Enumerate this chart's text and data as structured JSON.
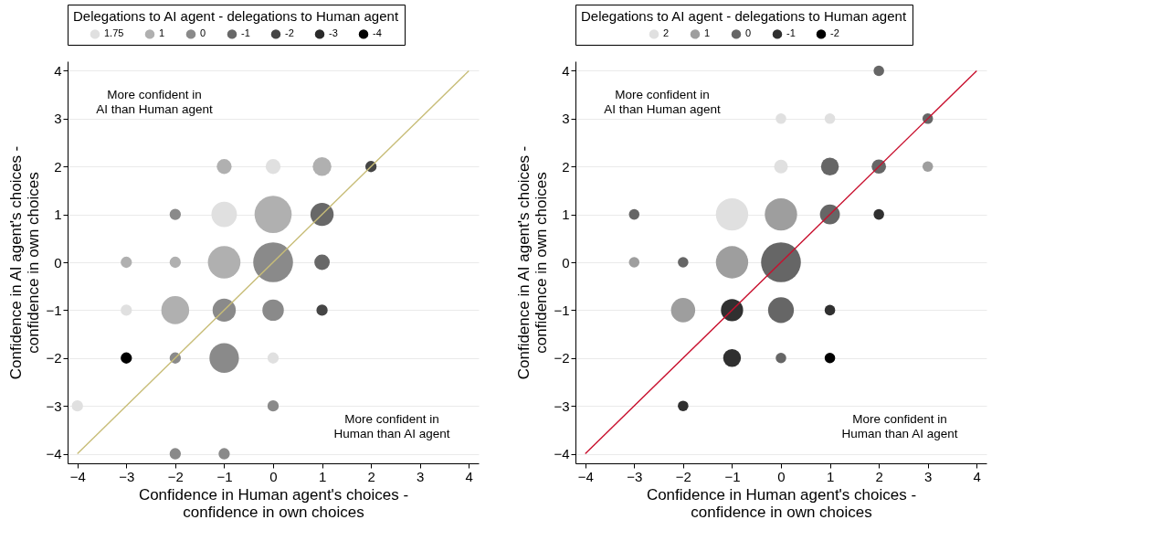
{
  "chart_data": [
    {
      "type": "bubble",
      "xlabel": "Confidence in Human agent's choices -\nconfidence in own choices",
      "ylabel": "Confidence in AI agent's choices -\nconfidence in own choices",
      "legend_title": "Delegations to AI agent - delegations to Human agent",
      "legend": "top",
      "grid": "y",
      "xlim": [
        -4.2,
        4.2
      ],
      "ylim": [
        -4.2,
        4.2
      ],
      "xticks": [
        -4,
        -3,
        -2,
        -1,
        0,
        1,
        2,
        3,
        4
      ],
      "yticks": [
        -4,
        -3,
        -2,
        -1,
        0,
        1,
        2,
        3,
        4
      ],
      "annotations": [
        "More confident in\nAI than Human agent",
        "More confident in\nHuman than AI agent"
      ],
      "series": [
        {
          "name": "1.75",
          "color": "#e0e0e0",
          "x": [
            0,
            -1,
            -3,
            0,
            -4
          ],
          "values": [
            2,
            1,
            -1,
            -2,
            -3
          ],
          "sizes": [
            0.14,
            0.41,
            0.08,
            0.08,
            0.08
          ]
        },
        {
          "name": "1",
          "color": "#b0b0b0",
          "x": [
            -1,
            1,
            0,
            -3,
            -2,
            -1,
            -2
          ],
          "values": [
            2,
            2,
            1,
            0,
            0,
            0,
            -1
          ],
          "sizes": [
            0.14,
            0.22,
            0.87,
            0.08,
            0.08,
            0.67,
            0.49
          ]
        },
        {
          "name": "0",
          "color": "#8a8a8a",
          "x": [
            -2,
            0,
            -1,
            0,
            -2,
            -1,
            0,
            -2,
            -1
          ],
          "values": [
            1,
            0,
            -1,
            -1,
            -2,
            -2,
            -3,
            -4,
            -4
          ],
          "sizes": [
            0.08,
            1,
            0.34,
            0.29,
            0.08,
            0.55,
            0.08,
            0.08,
            0.08
          ]
        },
        {
          "name": "-1",
          "color": "#686868",
          "x": [
            1,
            1
          ],
          "values": [
            1,
            0
          ],
          "sizes": [
            0.34,
            0.15
          ]
        },
        {
          "name": "-2",
          "color": "#454545",
          "x": [
            2,
            1
          ],
          "values": [
            2,
            -1
          ],
          "sizes": [
            0.08,
            0.08
          ]
        },
        {
          "name": "-3",
          "color": "#2a2a2a"
        },
        {
          "name": "-4",
          "color": "#000000",
          "x": [
            -3
          ],
          "values": [
            -2
          ],
          "sizes": [
            0.08
          ]
        },
        {
          "type": "line",
          "color": "#c8bd78",
          "x": [
            -4,
            4
          ],
          "values": [
            -4,
            4
          ]
        }
      ]
    },
    {
      "type": "bubble",
      "xlabel": "Confidence in Human agent's choices -\nconfidence in own choices",
      "ylabel": "Confidence in AI agent's choices -\nconfidence in own choices",
      "legend_title": "Delegations to AI agent - delegations to Human agent",
      "legend": "top",
      "grid": "y",
      "xlim": [
        -4.2,
        4.2
      ],
      "ylim": [
        -4.2,
        4.2
      ],
      "xticks": [
        -4,
        -3,
        -2,
        -1,
        0,
        1,
        2,
        3,
        4
      ],
      "yticks": [
        -4,
        -3,
        -2,
        -1,
        0,
        1,
        2,
        3,
        4
      ],
      "annotations": [
        "More confident in\nAI than Human agent",
        "More confident in\nHuman than AI agent"
      ],
      "series": [
        {
          "name": "2",
          "color": "#e0e0e0",
          "x": [
            0,
            1,
            0,
            -1
          ],
          "values": [
            3,
            3,
            2,
            1
          ],
          "sizes": [
            0.07,
            0.07,
            0.12,
            0.66
          ]
        },
        {
          "name": "1",
          "color": "#9e9e9e",
          "x": [
            3,
            0,
            -3,
            -1,
            -2
          ],
          "values": [
            2,
            1,
            0,
            0,
            -1
          ],
          "sizes": [
            0.07,
            0.66,
            0.07,
            0.66,
            0.37
          ]
        },
        {
          "name": "0",
          "color": "#666666",
          "x": [
            2,
            3,
            1,
            2,
            -3,
            1,
            -2,
            0,
            0,
            0
          ],
          "values": [
            4,
            3,
            2,
            2,
            1,
            1,
            0,
            0,
            -1,
            -2
          ],
          "sizes": [
            0.07,
            0.07,
            0.2,
            0.13,
            0.07,
            0.25,
            0.07,
            1,
            0.42,
            0.07
          ]
        },
        {
          "name": "-1",
          "color": "#303030",
          "x": [
            2,
            -1,
            1,
            -1,
            -2
          ],
          "values": [
            1,
            -1,
            -1,
            -2,
            -3
          ],
          "sizes": [
            0.07,
            0.31,
            0.07,
            0.2,
            0.07
          ]
        },
        {
          "name": "-2",
          "color": "#000000",
          "x": [
            1
          ],
          "values": [
            -2
          ],
          "sizes": [
            0.07
          ]
        },
        {
          "type": "line",
          "color": "#c8102e",
          "x": [
            -4,
            4
          ],
          "values": [
            -4,
            4
          ]
        }
      ]
    }
  ]
}
